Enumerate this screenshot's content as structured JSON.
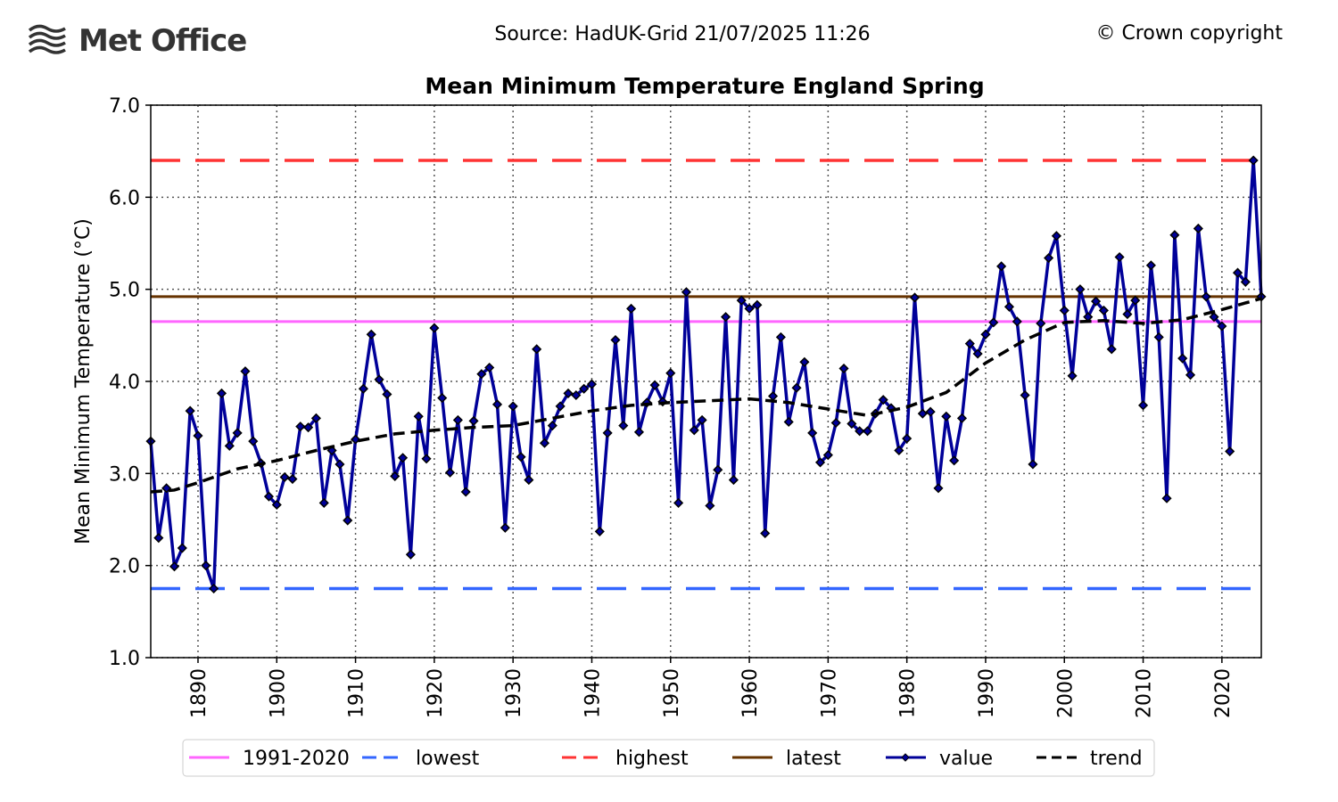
{
  "header": {
    "logo_text": "Met Office",
    "source": "Source: HadUK-Grid 21/07/2025 11:26",
    "copyright": "© Crown copyright"
  },
  "chart_data": {
    "type": "line",
    "title": "Mean Minimum Temperature England Spring",
    "xlabel": "",
    "ylabel": "Mean Minimum Temperature (°C)",
    "xlim": [
      1884,
      2025
    ],
    "ylim": [
      1.0,
      7.0
    ],
    "yticks": [
      "1.0",
      "2.0",
      "3.0",
      "4.0",
      "5.0",
      "6.0",
      "7.0"
    ],
    "xticks": [
      "1890",
      "1900",
      "1910",
      "1920",
      "1930",
      "1940",
      "1950",
      "1960",
      "1970",
      "1980",
      "1990",
      "2000",
      "2010",
      "2020"
    ],
    "grid": true,
    "legend_position": "bottom",
    "colors": {
      "baseline": "#ff66ff",
      "lowest": "#3366ff",
      "highest": "#ff3333",
      "latest": "#663300",
      "value": "#000099",
      "trend": "#000000"
    },
    "reference_lines": {
      "baseline": 4.65,
      "lowest": 1.75,
      "highest": 6.4,
      "latest": 4.92
    },
    "legend": [
      "1991-2020",
      "lowest",
      "highest",
      "latest",
      "value",
      "trend"
    ],
    "start_year": 1884,
    "values": [
      3.35,
      2.3,
      2.84,
      1.99,
      2.19,
      3.68,
      3.41,
      2.0,
      1.75,
      3.87,
      3.3,
      3.44,
      4.11,
      3.35,
      3.11,
      2.75,
      2.66,
      2.96,
      2.94,
      3.51,
      3.5,
      3.6,
      2.68,
      3.25,
      3.1,
      2.49,
      3.37,
      3.92,
      4.51,
      4.02,
      3.86,
      2.97,
      3.17,
      2.12,
      3.62,
      3.16,
      4.58,
      3.82,
      3.01,
      3.58,
      2.8,
      3.57,
      4.08,
      4.15,
      3.75,
      2.41,
      3.73,
      3.18,
      2.93,
      4.35,
      3.33,
      3.52,
      3.73,
      3.87,
      3.85,
      3.92,
      3.97,
      2.37,
      3.44,
      4.45,
      3.52,
      4.79,
      3.45,
      3.77,
      3.96,
      3.78,
      4.09,
      2.68,
      4.97,
      3.47,
      3.58,
      2.65,
      3.04,
      4.7,
      2.93,
      4.88,
      4.79,
      4.83,
      2.35,
      3.84,
      4.48,
      3.56,
      3.93,
      4.21,
      3.44,
      3.12,
      3.2,
      3.55,
      4.14,
      3.54,
      3.46,
      3.46,
      3.65,
      3.8,
      3.71,
      3.25,
      3.38,
      4.91,
      3.65,
      3.67,
      2.84,
      3.62,
      3.14,
      3.6,
      4.41,
      4.3,
      4.51,
      4.64,
      5.25,
      4.81,
      4.65,
      3.85,
      3.1,
      4.63,
      5.34,
      5.58,
      4.77,
      4.06,
      5.0,
      4.7,
      4.87,
      4.77,
      4.35,
      5.35,
      4.73,
      4.88,
      3.74,
      5.26,
      4.48,
      2.73,
      5.59,
      4.25,
      4.07,
      5.66,
      4.92,
      4.7,
      4.6,
      3.24,
      5.18,
      5.08,
      6.4,
      4.92
    ],
    "trend": {
      "x": [
        1884,
        1887,
        1890,
        1895,
        1900,
        1905,
        1910,
        1915,
        1920,
        1925,
        1930,
        1935,
        1940,
        1945,
        1950,
        1955,
        1960,
        1965,
        1970,
        1975,
        1980,
        1985,
        1990,
        1995,
        2000,
        2005,
        2010,
        2015,
        2020,
        2025
      ],
      "y": [
        2.8,
        2.82,
        2.9,
        3.05,
        3.14,
        3.25,
        3.35,
        3.43,
        3.47,
        3.5,
        3.52,
        3.6,
        3.68,
        3.74,
        3.77,
        3.79,
        3.81,
        3.77,
        3.7,
        3.63,
        3.72,
        3.88,
        4.2,
        4.45,
        4.64,
        4.66,
        4.63,
        4.67,
        4.78,
        4.9
      ]
    }
  }
}
